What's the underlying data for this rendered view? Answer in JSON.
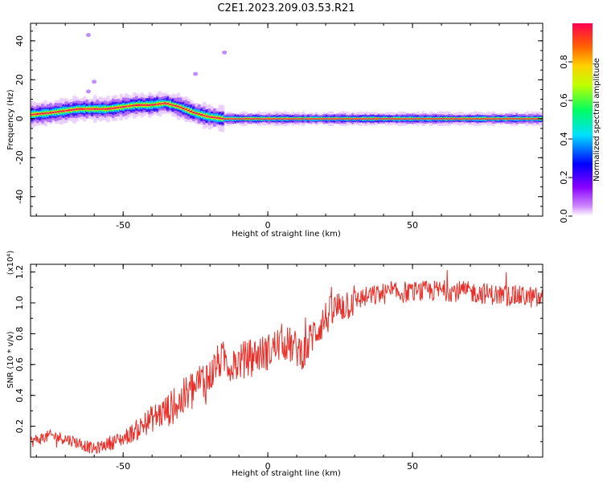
{
  "title": "C2E1.2023.209.03.53.R21",
  "chart_data": [
    {
      "type": "heatmap",
      "xlabel": "Height of straight line (km)",
      "ylabel": "Frequency (Hz)",
      "xlim": [
        -82,
        95
      ],
      "ylim": [
        -50,
        49
      ],
      "xticks": [
        "-50",
        "0",
        "50"
      ],
      "yticks": [
        "-40",
        "-20",
        "0",
        "20",
        "40"
      ],
      "colorbar": {
        "label": "Normalized spectral amplitude",
        "range": [
          0,
          1
        ],
        "ticks": [
          "0.0",
          "0.2",
          "0.4",
          "0.6",
          "0.8"
        ],
        "colors": [
          "#ffffff",
          "#d08bff",
          "#8a00ff",
          "#0000ff",
          "#00e0ff",
          "#00ff60",
          "#c0ff00",
          "#ffd000",
          "#ff6000",
          "#ff0050"
        ]
      },
      "ridge": {
        "x": [
          -82,
          -75,
          -70,
          -65,
          -60,
          -55,
          -50,
          -45,
          -40,
          -35,
          -30,
          -25,
          -20,
          -15,
          -10,
          0,
          10,
          20,
          40,
          60,
          80,
          95
        ],
        "y": [
          2,
          3,
          4,
          5,
          5,
          5,
          6,
          7,
          7,
          8,
          6,
          3,
          1,
          0,
          0,
          0,
          0,
          0,
          0,
          0,
          0,
          0
        ]
      },
      "outliers": [
        {
          "x": -60,
          "y": 19
        },
        {
          "x": -62,
          "y": 14
        },
        {
          "x": -25,
          "y": 23
        },
        {
          "x": -15,
          "y": 34
        },
        {
          "x": -62,
          "y": 43
        }
      ]
    },
    {
      "type": "line",
      "xlabel": "Height of straight line (km)",
      "ylabel": "SNR (10 * v/v)",
      "yscale_label": "(x10⁴)",
      "xlim": [
        -82,
        95
      ],
      "ylim": [
        0,
        1.25
      ],
      "xticks": [
        "-50",
        "0",
        "50"
      ],
      "yticks": [
        "0.2",
        "0.4",
        "0.6",
        "0.8",
        "1.0",
        "1.2"
      ],
      "color": "#e8302a",
      "series": [
        {
          "x": [
            -82,
            -75,
            -70,
            -65,
            -60,
            -55,
            -50,
            -45,
            -40,
            -35,
            -30,
            -28,
            -25,
            -20,
            -18,
            -15,
            -12,
            -10,
            -5,
            0,
            5,
            10,
            13,
            15,
            20,
            25,
            30,
            40,
            50,
            60,
            70,
            80,
            90,
            95
          ],
          "y": [
            0.1,
            0.14,
            0.12,
            0.09,
            0.05,
            0.09,
            0.12,
            0.18,
            0.25,
            0.3,
            0.36,
            0.4,
            0.45,
            0.52,
            0.6,
            0.64,
            0.58,
            0.62,
            0.66,
            0.68,
            0.75,
            0.7,
            0.68,
            0.78,
            0.9,
            0.98,
            1.02,
            1.06,
            1.07,
            1.08,
            1.07,
            1.05,
            1.04,
            1.02
          ]
        }
      ]
    }
  ]
}
